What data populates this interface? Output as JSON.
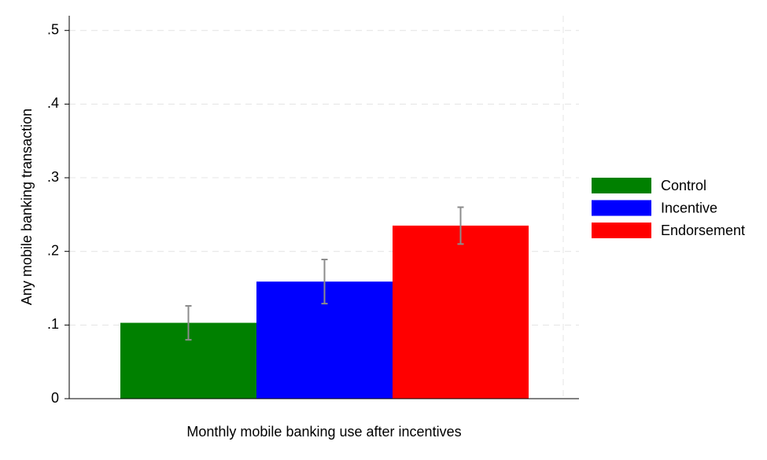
{
  "chart_data": {
    "type": "bar",
    "x_label": "Monthly mobile banking use after incentives",
    "y_label": "Any mobile banking transaction",
    "series": [
      {
        "name": "Control",
        "color": "#008000",
        "values": [
          0.103
        ],
        "errors": [
          0.023
        ]
      },
      {
        "name": "Incentive",
        "color": "#0000ff",
        "values": [
          0.159
        ],
        "errors": [
          0.03
        ]
      },
      {
        "name": "Endorsement",
        "color": "#ff0000",
        "values": [
          0.235
        ],
        "errors": [
          0.025
        ]
      }
    ],
    "ylim": [
      0,
      0.52
    ],
    "yticks": [
      0,
      {
        "value": 0.1,
        "label": ".1"
      },
      {
        "value": 0.2,
        "label": ".2"
      },
      {
        "value": 0.3,
        "label": ".3"
      },
      {
        "value": 0.4,
        "label": ".4"
      },
      {
        "value": 0.5,
        "label": ".5"
      }
    ],
    "grid": true,
    "legend": "right"
  }
}
